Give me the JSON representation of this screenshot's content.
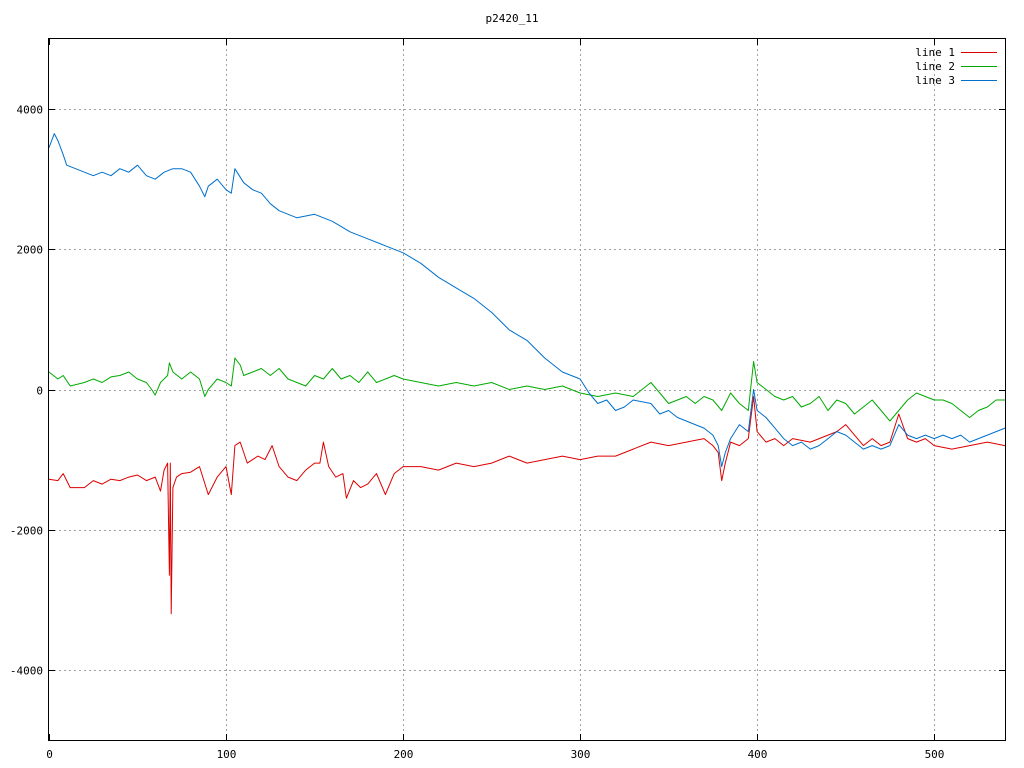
{
  "chart_data": {
    "type": "line",
    "title": "p2420_11",
    "xlabel": "",
    "ylabel": "",
    "xlim": [
      0,
      540
    ],
    "ylim": [
      -5000,
      5000
    ],
    "x_ticks": [
      0,
      100,
      200,
      300,
      400,
      500
    ],
    "x_tick_labels": [
      "0",
      "100",
      "200",
      "300",
      "400",
      "500"
    ],
    "y_ticks": [
      -4000,
      -2000,
      0,
      2000,
      4000
    ],
    "y_tick_labels": [
      "-4000",
      "-2000",
      "0",
      "2000",
      "4000"
    ],
    "grid": true,
    "legend_position": "top-right",
    "series": [
      {
        "name": "line 1",
        "color": "#dd0000",
        "points": [
          [
            0,
            -1280
          ],
          [
            5,
            -1300
          ],
          [
            8,
            -1200
          ],
          [
            12,
            -1400
          ],
          [
            20,
            -1400
          ],
          [
            25,
            -1300
          ],
          [
            30,
            -1350
          ],
          [
            35,
            -1280
          ],
          [
            40,
            -1300
          ],
          [
            45,
            -1250
          ],
          [
            50,
            -1220
          ],
          [
            55,
            -1300
          ],
          [
            60,
            -1250
          ],
          [
            63,
            -1450
          ],
          [
            65,
            -1150
          ],
          [
            67,
            -1050
          ],
          [
            68,
            -2650
          ],
          [
            68.5,
            -1050
          ],
          [
            69,
            -3200
          ],
          [
            70,
            -1400
          ],
          [
            72,
            -1250
          ],
          [
            75,
            -1200
          ],
          [
            80,
            -1180
          ],
          [
            85,
            -1100
          ],
          [
            90,
            -1500
          ],
          [
            95,
            -1250
          ],
          [
            100,
            -1100
          ],
          [
            103,
            -1500
          ],
          [
            105,
            -800
          ],
          [
            108,
            -750
          ],
          [
            112,
            -1050
          ],
          [
            118,
            -950
          ],
          [
            122,
            -1000
          ],
          [
            126,
            -800
          ],
          [
            130,
            -1100
          ],
          [
            135,
            -1250
          ],
          [
            140,
            -1300
          ],
          [
            145,
            -1150
          ],
          [
            150,
            -1050
          ],
          [
            153,
            -1050
          ],
          [
            155,
            -750
          ],
          [
            158,
            -1100
          ],
          [
            162,
            -1250
          ],
          [
            166,
            -1200
          ],
          [
            168,
            -1550
          ],
          [
            172,
            -1300
          ],
          [
            176,
            -1400
          ],
          [
            180,
            -1350
          ],
          [
            185,
            -1200
          ],
          [
            190,
            -1500
          ],
          [
            195,
            -1200
          ],
          [
            200,
            -1100
          ],
          [
            210,
            -1100
          ],
          [
            220,
            -1150
          ],
          [
            230,
            -1050
          ],
          [
            240,
            -1100
          ],
          [
            250,
            -1050
          ],
          [
            260,
            -950
          ],
          [
            270,
            -1050
          ],
          [
            280,
            -1000
          ],
          [
            290,
            -950
          ],
          [
            300,
            -1000
          ],
          [
            310,
            -950
          ],
          [
            320,
            -950
          ],
          [
            330,
            -850
          ],
          [
            340,
            -750
          ],
          [
            350,
            -800
          ],
          [
            360,
            -750
          ],
          [
            370,
            -700
          ],
          [
            375,
            -800
          ],
          [
            378,
            -900
          ],
          [
            380,
            -1300
          ],
          [
            382,
            -1050
          ],
          [
            385,
            -750
          ],
          [
            390,
            -800
          ],
          [
            395,
            -700
          ],
          [
            398,
            -100
          ],
          [
            400,
            -600
          ],
          [
            405,
            -750
          ],
          [
            410,
            -700
          ],
          [
            415,
            -800
          ],
          [
            420,
            -700
          ],
          [
            430,
            -750
          ],
          [
            440,
            -650
          ],
          [
            445,
            -600
          ],
          [
            450,
            -500
          ],
          [
            455,
            -650
          ],
          [
            460,
            -800
          ],
          [
            465,
            -700
          ],
          [
            470,
            -800
          ],
          [
            475,
            -750
          ],
          [
            480,
            -350
          ],
          [
            485,
            -700
          ],
          [
            490,
            -750
          ],
          [
            495,
            -700
          ],
          [
            500,
            -800
          ],
          [
            510,
            -850
          ],
          [
            520,
            -800
          ],
          [
            530,
            -750
          ],
          [
            540,
            -800
          ]
        ]
      },
      {
        "name": "line 2",
        "color": "#00aa00",
        "points": [
          [
            0,
            250
          ],
          [
            5,
            150
          ],
          [
            8,
            200
          ],
          [
            12,
            50
          ],
          [
            20,
            100
          ],
          [
            25,
            150
          ],
          [
            30,
            100
          ],
          [
            35,
            180
          ],
          [
            40,
            200
          ],
          [
            45,
            250
          ],
          [
            50,
            150
          ],
          [
            55,
            100
          ],
          [
            58,
            0
          ],
          [
            60,
            -80
          ],
          [
            63,
            100
          ],
          [
            67,
            200
          ],
          [
            68,
            380
          ],
          [
            70,
            250
          ],
          [
            75,
            150
          ],
          [
            80,
            250
          ],
          [
            85,
            150
          ],
          [
            88,
            -100
          ],
          [
            90,
            0
          ],
          [
            95,
            150
          ],
          [
            100,
            100
          ],
          [
            103,
            50
          ],
          [
            105,
            450
          ],
          [
            108,
            350
          ],
          [
            110,
            200
          ],
          [
            115,
            250
          ],
          [
            120,
            300
          ],
          [
            125,
            200
          ],
          [
            130,
            300
          ],
          [
            135,
            150
          ],
          [
            140,
            100
          ],
          [
            145,
            50
          ],
          [
            150,
            200
          ],
          [
            155,
            150
          ],
          [
            160,
            300
          ],
          [
            165,
            150
          ],
          [
            170,
            200
          ],
          [
            175,
            100
          ],
          [
            180,
            250
          ],
          [
            185,
            100
          ],
          [
            190,
            150
          ],
          [
            195,
            200
          ],
          [
            200,
            150
          ],
          [
            210,
            100
          ],
          [
            220,
            50
          ],
          [
            230,
            100
          ],
          [
            240,
            50
          ],
          [
            250,
            100
          ],
          [
            260,
            0
          ],
          [
            270,
            50
          ],
          [
            280,
            0
          ],
          [
            290,
            50
          ],
          [
            300,
            -50
          ],
          [
            310,
            -100
          ],
          [
            320,
            -50
          ],
          [
            330,
            -100
          ],
          [
            340,
            100
          ],
          [
            345,
            -50
          ],
          [
            350,
            -200
          ],
          [
            355,
            -150
          ],
          [
            360,
            -100
          ],
          [
            365,
            -200
          ],
          [
            370,
            -100
          ],
          [
            375,
            -150
          ],
          [
            380,
            -300
          ],
          [
            385,
            -50
          ],
          [
            390,
            -200
          ],
          [
            395,
            -300
          ],
          [
            398,
            400
          ],
          [
            400,
            100
          ],
          [
            405,
            0
          ],
          [
            410,
            -100
          ],
          [
            415,
            -150
          ],
          [
            420,
            -100
          ],
          [
            425,
            -250
          ],
          [
            430,
            -200
          ],
          [
            435,
            -100
          ],
          [
            440,
            -300
          ],
          [
            445,
            -150
          ],
          [
            450,
            -200
          ],
          [
            455,
            -350
          ],
          [
            460,
            -250
          ],
          [
            465,
            -150
          ],
          [
            470,
            -300
          ],
          [
            475,
            -450
          ],
          [
            480,
            -300
          ],
          [
            485,
            -150
          ],
          [
            490,
            -50
          ],
          [
            495,
            -100
          ],
          [
            500,
            -150
          ],
          [
            505,
            -150
          ],
          [
            510,
            -200
          ],
          [
            515,
            -300
          ],
          [
            520,
            -400
          ],
          [
            525,
            -300
          ],
          [
            530,
            -250
          ],
          [
            535,
            -150
          ],
          [
            540,
            -150
          ]
        ]
      },
      {
        "name": "line 3",
        "color": "#0070cc",
        "points": [
          [
            0,
            3450
          ],
          [
            3,
            3650
          ],
          [
            5,
            3550
          ],
          [
            8,
            3350
          ],
          [
            10,
            3200
          ],
          [
            15,
            3150
          ],
          [
            20,
            3100
          ],
          [
            25,
            3050
          ],
          [
            30,
            3100
          ],
          [
            35,
            3050
          ],
          [
            40,
            3150
          ],
          [
            45,
            3100
          ],
          [
            50,
            3200
          ],
          [
            55,
            3050
          ],
          [
            60,
            3000
          ],
          [
            65,
            3100
          ],
          [
            70,
            3150
          ],
          [
            75,
            3150
          ],
          [
            80,
            3100
          ],
          [
            85,
            2900
          ],
          [
            88,
            2750
          ],
          [
            90,
            2900
          ],
          [
            95,
            3000
          ],
          [
            100,
            2850
          ],
          [
            103,
            2800
          ],
          [
            105,
            3150
          ],
          [
            110,
            2950
          ],
          [
            115,
            2850
          ],
          [
            120,
            2800
          ],
          [
            125,
            2650
          ],
          [
            130,
            2550
          ],
          [
            140,
            2450
          ],
          [
            150,
            2500
          ],
          [
            160,
            2400
          ],
          [
            170,
            2250
          ],
          [
            180,
            2150
          ],
          [
            190,
            2050
          ],
          [
            200,
            1950
          ],
          [
            210,
            1800
          ],
          [
            220,
            1600
          ],
          [
            230,
            1450
          ],
          [
            240,
            1300
          ],
          [
            250,
            1100
          ],
          [
            260,
            850
          ],
          [
            270,
            700
          ],
          [
            280,
            450
          ],
          [
            290,
            250
          ],
          [
            300,
            150
          ],
          [
            305,
            -50
          ],
          [
            310,
            -200
          ],
          [
            315,
            -150
          ],
          [
            320,
            -300
          ],
          [
            325,
            -250
          ],
          [
            330,
            -150
          ],
          [
            340,
            -200
          ],
          [
            345,
            -350
          ],
          [
            350,
            -300
          ],
          [
            355,
            -400
          ],
          [
            360,
            -450
          ],
          [
            365,
            -500
          ],
          [
            370,
            -550
          ],
          [
            375,
            -650
          ],
          [
            378,
            -800
          ],
          [
            380,
            -1100
          ],
          [
            382,
            -900
          ],
          [
            385,
            -700
          ],
          [
            390,
            -500
          ],
          [
            395,
            -600
          ],
          [
            398,
            0
          ],
          [
            400,
            -300
          ],
          [
            405,
            -400
          ],
          [
            410,
            -550
          ],
          [
            415,
            -700
          ],
          [
            420,
            -800
          ],
          [
            425,
            -750
          ],
          [
            430,
            -850
          ],
          [
            435,
            -800
          ],
          [
            440,
            -700
          ],
          [
            445,
            -600
          ],
          [
            450,
            -650
          ],
          [
            455,
            -750
          ],
          [
            460,
            -850
          ],
          [
            465,
            -800
          ],
          [
            470,
            -850
          ],
          [
            475,
            -800
          ],
          [
            480,
            -500
          ],
          [
            485,
            -650
          ],
          [
            490,
            -700
          ],
          [
            495,
            -650
          ],
          [
            500,
            -700
          ],
          [
            505,
            -650
          ],
          [
            510,
            -700
          ],
          [
            515,
            -650
          ],
          [
            520,
            -750
          ],
          [
            525,
            -700
          ],
          [
            530,
            -650
          ],
          [
            535,
            -600
          ],
          [
            540,
            -550
          ]
        ]
      }
    ]
  }
}
